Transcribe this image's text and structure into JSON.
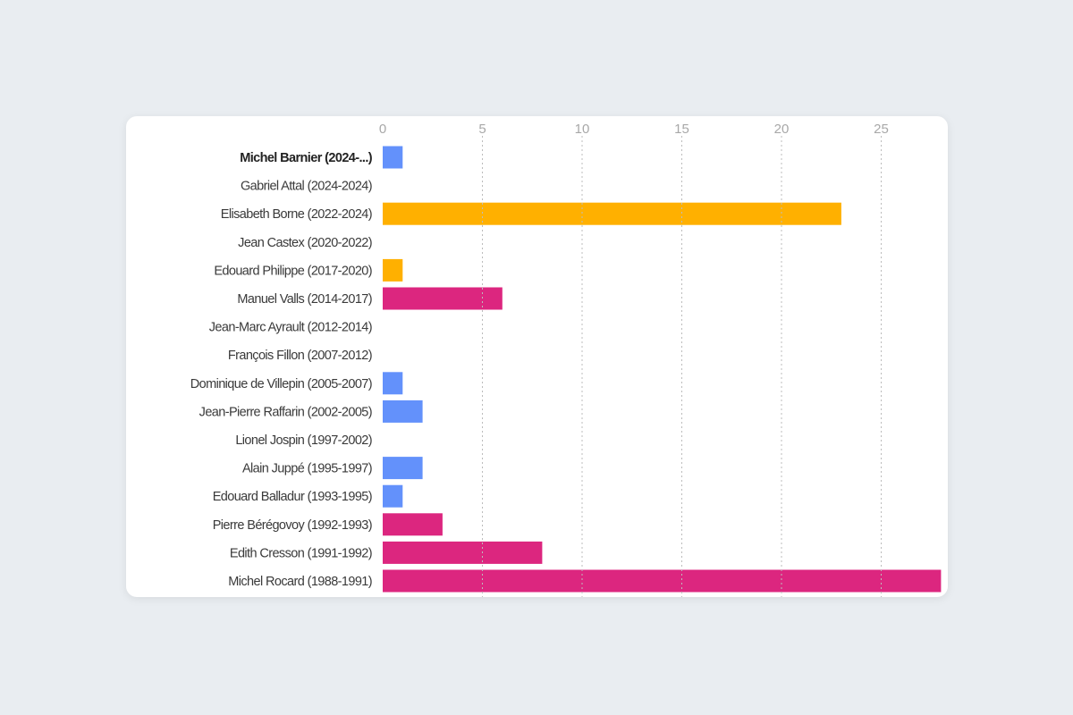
{
  "chart_data": {
    "type": "bar",
    "orientation": "horizontal",
    "categories": [
      "Michel Barnier (2024-...)",
      "Gabriel Attal (2024-2024)",
      "Elisabeth Borne (2022-2024)",
      "Jean Castex (2020-2022)",
      "Edouard Philippe (2017-2020)",
      "Manuel Valls (2014-2017)",
      "Jean-Marc Ayrault (2012-2014)",
      "François Fillon (2007-2012)",
      "Dominique de Villepin (2005-2007)",
      "Jean-Pierre Raffarin (2002-2005)",
      "Lionel Jospin (1997-2002)",
      "Alain Juppé (1995-1997)",
      "Edouard Balladur (1993-1995)",
      "Pierre Bérégovoy (1992-1993)",
      "Edith Cresson (1991-1992)",
      "Michel Rocard (1988-1991)"
    ],
    "values": [
      1,
      0,
      23,
      0,
      1,
      6,
      0,
      0,
      1,
      2,
      0,
      2,
      1,
      3,
      8,
      28
    ],
    "bar_colors": [
      "#6391fb",
      "#6391fb",
      "#ffb000",
      "#ffb000",
      "#ffb000",
      "#dc267f",
      "#dc267f",
      "#6391fb",
      "#6391fb",
      "#6391fb",
      "#dc267f",
      "#6391fb",
      "#6391fb",
      "#dc267f",
      "#dc267f",
      "#dc267f"
    ],
    "highlighted_category": "Michel Barnier (2024-...)",
    "x_ticks": [
      0,
      5,
      10,
      15,
      20,
      25
    ],
    "xlim": [
      0,
      28
    ],
    "axis_position": "top",
    "grid": "vertical dotted",
    "title": "",
    "xlabel": "",
    "ylabel": ""
  }
}
